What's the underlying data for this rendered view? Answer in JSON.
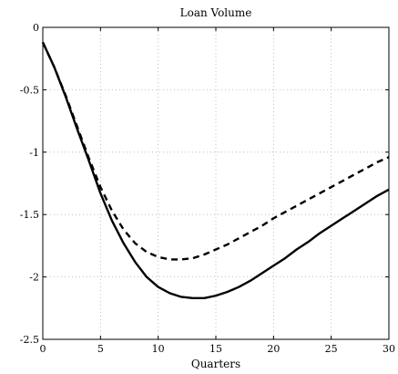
{
  "chart_data": {
    "type": "line",
    "title": "Loan Volume",
    "xlabel": "Quarters",
    "ylabel": "",
    "xlim": [
      0,
      30
    ],
    "ylim": [
      -2.5,
      0
    ],
    "xticks": [
      0,
      5,
      10,
      15,
      20,
      25,
      30
    ],
    "yticks": [
      0,
      -0.5,
      -1,
      -1.5,
      -2,
      -2.5
    ],
    "xtick_labels": [
      "0",
      "5",
      "10",
      "15",
      "20",
      "25",
      "30"
    ],
    "ytick_labels": [
      "0",
      "-0.5",
      "-1",
      "-1.5",
      "-2",
      "-2.5"
    ],
    "grid": true,
    "legend": "none",
    "series": [
      {
        "style": "solid",
        "x": [
          0,
          1,
          2,
          3,
          4,
          5,
          6,
          7,
          8,
          9,
          10,
          11,
          12,
          13,
          14,
          15,
          16,
          17,
          18,
          19,
          20,
          21,
          22,
          23,
          24,
          25,
          26,
          27,
          28,
          29,
          30
        ],
        "y": [
          -0.12,
          -0.32,
          -0.56,
          -0.82,
          -1.07,
          -1.33,
          -1.55,
          -1.73,
          -1.88,
          -2.0,
          -2.08,
          -2.13,
          -2.16,
          -2.17,
          -2.17,
          -2.15,
          -2.12,
          -2.08,
          -2.03,
          -1.97,
          -1.91,
          -1.85,
          -1.78,
          -1.72,
          -1.65,
          -1.59,
          -1.53,
          -1.47,
          -1.41,
          -1.35,
          -1.3
        ]
      },
      {
        "style": "dashed",
        "x": [
          0,
          1,
          2,
          3,
          4,
          5,
          6,
          7,
          8,
          9,
          10,
          11,
          12,
          13,
          14,
          15,
          16,
          17,
          18,
          19,
          20,
          21,
          22,
          23,
          24,
          25,
          26,
          27,
          28,
          29,
          30
        ],
        "y": [
          -0.12,
          -0.32,
          -0.55,
          -0.8,
          -1.05,
          -1.28,
          -1.47,
          -1.62,
          -1.73,
          -1.8,
          -1.84,
          -1.86,
          -1.86,
          -1.85,
          -1.82,
          -1.78,
          -1.74,
          -1.69,
          -1.64,
          -1.59,
          -1.53,
          -1.48,
          -1.43,
          -1.38,
          -1.33,
          -1.28,
          -1.23,
          -1.18,
          -1.13,
          -1.08,
          -1.04
        ]
      }
    ]
  }
}
